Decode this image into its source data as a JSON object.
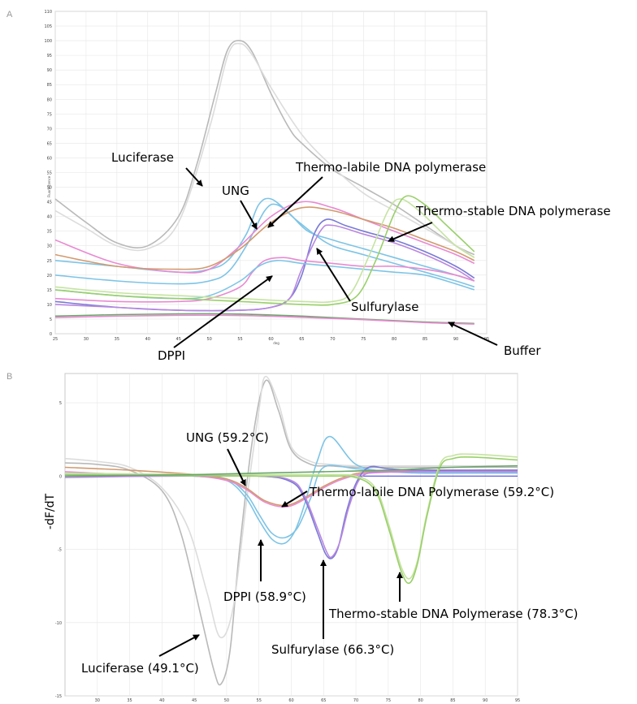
{
  "colors": {
    "luciferase": "#b9b9b9",
    "luciferase2": "#dcdcdc",
    "blue": "#7dc4e6",
    "pink": "#e98ad2",
    "orange": "#d29a6e",
    "purple": "#7a7ad6",
    "green": "#9ad06a",
    "lightgreen": "#c5e3a0",
    "darkgreen": "#6aa66a",
    "violet": "#b987e0",
    "axis": "#c8c8c8",
    "grid": "#e6e6e6",
    "zero": "#4a4ad8"
  },
  "chart_data": [
    {
      "panel": "A",
      "type": "line",
      "title": "",
      "xlabel": "deg",
      "ylabel": "Fluorescence",
      "xlim": [
        25,
        95
      ],
      "ylim": [
        0,
        110
      ],
      "xticks": [
        25,
        30,
        35,
        40,
        45,
        50,
        55,
        60,
        65,
        70,
        75,
        80,
        85,
        90,
        95
      ],
      "yticks": [
        0,
        5,
        10,
        15,
        20,
        25,
        30,
        35,
        40,
        45,
        50,
        55,
        60,
        65,
        70,
        75,
        80,
        85,
        90,
        95,
        100,
        105,
        110
      ],
      "grid": true,
      "series": [
        {
          "color_key": "luciferase",
          "x": [
            25,
            30,
            35,
            40,
            45,
            48,
            51,
            53,
            55,
            57,
            60,
            63,
            65,
            70,
            75,
            80,
            85,
            90,
            93
          ],
          "y": [
            46,
            38,
            31,
            30,
            40,
            58,
            82,
            97,
            100,
            96,
            82,
            70,
            65,
            56,
            50,
            44,
            37,
            30,
            27
          ]
        },
        {
          "color_key": "luciferase2",
          "x": [
            25,
            30,
            35,
            40,
            45,
            50,
            53,
            55,
            57,
            60,
            65,
            70,
            75,
            80,
            85,
            90,
            93
          ],
          "y": [
            42,
            36,
            30,
            29,
            38,
            70,
            95,
            99,
            95,
            84,
            68,
            57,
            48,
            42,
            36,
            30,
            26
          ]
        },
        {
          "color_key": "blue",
          "x": [
            25,
            35,
            45,
            50,
            53,
            56,
            58,
            60,
            63,
            66,
            70,
            75,
            80,
            85,
            90,
            93
          ],
          "y": [
            25,
            23,
            21,
            22,
            25,
            34,
            44,
            46,
            41,
            35,
            32,
            29,
            26,
            23,
            20,
            18
          ]
        },
        {
          "color_key": "blue",
          "x": [
            25,
            35,
            45,
            50,
            53,
            56,
            59,
            61,
            64,
            67,
            70,
            75,
            80,
            85,
            90,
            93
          ],
          "y": [
            20,
            18,
            17,
            18,
            21,
            30,
            42,
            44,
            39,
            34,
            30,
            27,
            24,
            21,
            18,
            16
          ]
        },
        {
          "color_key": "pink",
          "x": [
            25,
            35,
            45,
            50,
            55,
            60,
            65,
            70,
            75,
            80,
            85,
            90,
            93
          ],
          "y": [
            32,
            24,
            21,
            22,
            30,
            40,
            45,
            43,
            39,
            35,
            31,
            27,
            24
          ]
        },
        {
          "color_key": "orange",
          "x": [
            25,
            35,
            45,
            50,
            55,
            60,
            65,
            70,
            75,
            80,
            85,
            90,
            93
          ],
          "y": [
            27,
            23,
            22,
            23,
            29,
            38,
            43,
            42,
            39,
            36,
            32,
            28,
            25
          ]
        },
        {
          "color_key": "purple",
          "x": [
            25,
            35,
            45,
            55,
            60,
            63,
            65,
            67,
            69,
            72,
            75,
            80,
            85,
            90,
            93
          ],
          "y": [
            11,
            9,
            8,
            8,
            9,
            12,
            20,
            34,
            39,
            37,
            35,
            32,
            28,
            23,
            19
          ]
        },
        {
          "color_key": "violet",
          "x": [
            25,
            35,
            45,
            55,
            60,
            63,
            65,
            68,
            70,
            75,
            80,
            85,
            90,
            93
          ],
          "y": [
            10,
            9,
            8,
            8,
            9,
            12,
            22,
            35,
            37,
            34,
            31,
            27,
            22,
            18
          ]
        },
        {
          "color_key": "pink",
          "x": [
            25,
            35,
            45,
            50,
            55,
            57,
            59,
            62,
            65,
            70,
            75,
            80,
            85,
            90,
            93
          ],
          "y": [
            12,
            11,
            11,
            12,
            16,
            21,
            25,
            26,
            25,
            24,
            23,
            23,
            22,
            20,
            18
          ]
        },
        {
          "color_key": "blue",
          "x": [
            25,
            35,
            45,
            50,
            55,
            58,
            61,
            65,
            70,
            75,
            80,
            85,
            90,
            93
          ],
          "y": [
            15,
            13,
            12,
            13,
            18,
            23,
            25,
            24,
            23,
            22,
            21,
            20,
            17,
            15
          ]
        },
        {
          "color_key": "lightgreen",
          "x": [
            25,
            35,
            45,
            55,
            65,
            70,
            73,
            76,
            79,
            81,
            84,
            87,
            90,
            93
          ],
          "y": [
            16,
            14,
            13,
            12,
            11,
            11,
            14,
            27,
            42,
            46,
            42,
            36,
            30,
            26
          ]
        },
        {
          "color_key": "green",
          "x": [
            25,
            35,
            45,
            55,
            65,
            70,
            74,
            77,
            80,
            82,
            85,
            88,
            91,
            93
          ],
          "y": [
            15,
            13,
            12,
            11,
            10,
            10,
            13,
            25,
            41,
            47,
            44,
            38,
            32,
            28
          ]
        },
        {
          "color_key": "darkgreen",
          "x": [
            25,
            35,
            45,
            55,
            65,
            75,
            85,
            93
          ],
          "y": [
            6,
            6.5,
            6.8,
            6.7,
            6,
            5,
            4,
            3.5
          ]
        },
        {
          "color_key": "pink",
          "x": [
            25,
            35,
            45,
            55,
            65,
            75,
            85,
            93
          ],
          "y": [
            5.5,
            6,
            6.3,
            6.2,
            5.6,
            4.8,
            3.8,
            3.3
          ]
        }
      ],
      "annotations": [
        {
          "text": "Luciferase"
        },
        {
          "text": "Thermo-labile DNA polymerase"
        },
        {
          "text": "UNG"
        },
        {
          "text": "Thermo-stable DNA polymerase"
        },
        {
          "text": "Sulfurylase"
        },
        {
          "text": "DPPI"
        },
        {
          "text": "Buffer"
        }
      ]
    },
    {
      "panel": "B",
      "type": "line",
      "title": "",
      "xlabel": "",
      "ylabel": "-dF/dT",
      "xlim": [
        25,
        95
      ],
      "ylim": [
        -15,
        7
      ],
      "xticks": [
        30,
        35,
        40,
        45,
        50,
        55,
        60,
        65,
        70,
        75,
        80,
        85,
        90,
        95
      ],
      "yticks": [
        5,
        0,
        -5,
        -10,
        -15
      ],
      "grid": true,
      "series": [
        {
          "color_key": "luciferase",
          "x": [
            25,
            30,
            35,
            40,
            43,
            46,
            48,
            49.1,
            50.5,
            52,
            54,
            56,
            58,
            60,
            63,
            66,
            70,
            75,
            80,
            85,
            90,
            95
          ],
          "y": [
            0.9,
            0.8,
            0.4,
            -1,
            -4,
            -9.5,
            -13.2,
            -14.2,
            -12,
            -5,
            2.5,
            6.5,
            4.5,
            1.8,
            0.8,
            0.7,
            0.6,
            0.6,
            0.6,
            0.6,
            0.6,
            0.6
          ]
        },
        {
          "color_key": "luciferase2",
          "x": [
            25,
            30,
            35,
            40,
            44,
            47,
            49,
            51,
            53,
            55,
            56,
            58,
            60,
            63,
            66,
            70,
            80,
            90,
            95
          ],
          "y": [
            1.2,
            1,
            0.6,
            -0.8,
            -3.5,
            -8,
            -11,
            -9,
            -2,
            4.5,
            6.8,
            5,
            2,
            1,
            0.8,
            0.7,
            0.7,
            0.7,
            0.7
          ]
        },
        {
          "color_key": "blue",
          "x": [
            25,
            35,
            45,
            50,
            53,
            55,
            57,
            58.9,
            60.5,
            62,
            64,
            66,
            70,
            75,
            80,
            85,
            90,
            95
          ],
          "y": [
            0.2,
            0.1,
            0,
            -0.3,
            -1.5,
            -3,
            -4.3,
            -4.6,
            -3.8,
            -2,
            1,
            2.7,
            0.8,
            0.3,
            0.3,
            0.3,
            0.3,
            0.3
          ]
        },
        {
          "color_key": "blue",
          "x": [
            25,
            35,
            45,
            50,
            53,
            55,
            57,
            59,
            61,
            63,
            65,
            70,
            75,
            80,
            90,
            95
          ],
          "y": [
            0.1,
            0,
            0,
            -0.2,
            -1.2,
            -2.6,
            -3.9,
            -4.2,
            -3.5,
            -1.5,
            0.6,
            0.5,
            0.3,
            0.2,
            0.2,
            0.2
          ]
        },
        {
          "color_key": "pink",
          "x": [
            25,
            35,
            45,
            50,
            53,
            56,
            59.2,
            62,
            65,
            68,
            72,
            80,
            90,
            95
          ],
          "y": [
            0.3,
            0.1,
            0,
            -0.3,
            -0.9,
            -1.8,
            -2.1,
            -1.6,
            -0.8,
            -0.2,
            0.2,
            0.3,
            0.3,
            0.3
          ]
        },
        {
          "color_key": "orange",
          "x": [
            25,
            35,
            45,
            50,
            53,
            56,
            59.2,
            62,
            65,
            68,
            72,
            80,
            90,
            95
          ],
          "y": [
            0.6,
            0.4,
            0.1,
            -0.2,
            -0.8,
            -1.7,
            -2,
            -1.5,
            -0.7,
            -0.1,
            0.3,
            0.4,
            0.4,
            0.4
          ]
        },
        {
          "color_key": "purple",
          "x": [
            25,
            40,
            55,
            60,
            62,
            64,
            65.3,
            66.3,
            67.3,
            68.5,
            70,
            72,
            75,
            80,
            90,
            95
          ],
          "y": [
            0,
            0,
            0,
            -0.4,
            -1.5,
            -3.8,
            -5.3,
            -5.6,
            -4.8,
            -2.5,
            -0.5,
            0.6,
            0.5,
            0.4,
            0.4,
            0.4
          ]
        },
        {
          "color_key": "violet",
          "x": [
            25,
            40,
            55,
            60,
            62,
            64,
            65.5,
            66.3,
            67.5,
            69,
            71,
            75,
            80,
            90,
            95
          ],
          "y": [
            -0.1,
            0,
            0,
            -0.3,
            -1.3,
            -3.5,
            -5.2,
            -5.5,
            -4.5,
            -2,
            0,
            0.3,
            0.3,
            0.3,
            0.3
          ]
        },
        {
          "color_key": "lightgreen",
          "x": [
            25,
            50,
            65,
            70,
            73,
            75,
            77,
            78.3,
            79.5,
            81,
            83,
            85,
            88,
            95
          ],
          "y": [
            0.2,
            0.1,
            0.1,
            0,
            -0.8,
            -3.2,
            -6.2,
            -7,
            -5.8,
            -2.5,
            0.8,
            1.4,
            1.5,
            1.3
          ]
        },
        {
          "color_key": "green",
          "x": [
            25,
            50,
            65,
            70,
            73,
            75,
            77,
            78.3,
            79.5,
            81,
            83,
            85,
            88,
            95
          ],
          "y": [
            0.1,
            0,
            0,
            -0.1,
            -1,
            -3.5,
            -6.5,
            -7.3,
            -6,
            -2.7,
            0.6,
            1.2,
            1.3,
            1.1
          ]
        },
        {
          "color_key": "darkgreen",
          "x": [
            25,
            35,
            45,
            55,
            65,
            75,
            85,
            95
          ],
          "y": [
            0,
            0.05,
            0.1,
            0.2,
            0.3,
            0.4,
            0.6,
            0.7
          ]
        }
      ],
      "annotations": [
        {
          "text": "UNG (59.2°C)"
        },
        {
          "text": "Thermo-labile DNA Polymerase (59.2°C)"
        },
        {
          "text": "DPPI (58.9°C)"
        },
        {
          "text": "Thermo-stable DNA Polymerase (78.3°C)"
        },
        {
          "text": "Sulfurylase (66.3°C)"
        },
        {
          "text": "Luciferase (49.1°C)"
        }
      ]
    }
  ]
}
